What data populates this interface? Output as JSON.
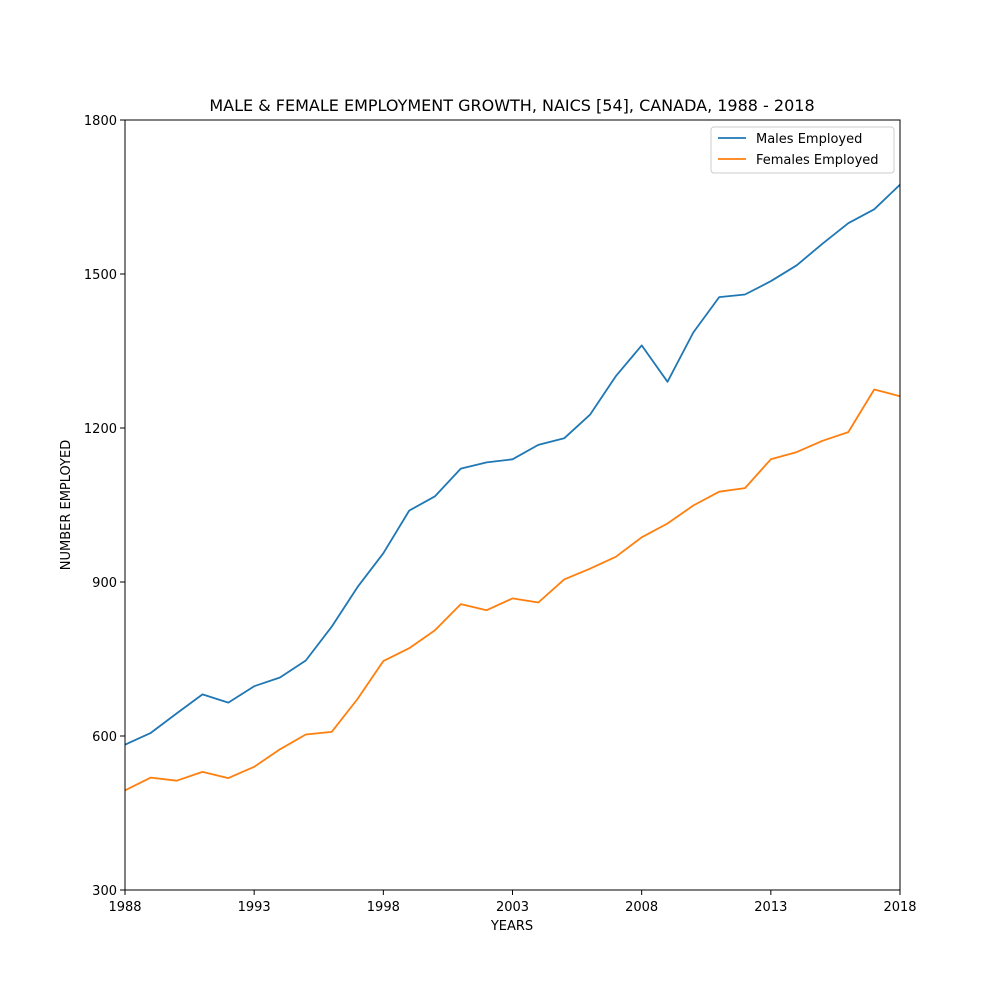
{
  "chart_data": {
    "type": "line",
    "title": "MALE & FEMALE EMPLOYMENT GROWTH, NAICS [54], CANADA, 1988  - 2018",
    "xlabel": "YEARS",
    "ylabel": "NUMBER EMPLOYED",
    "xlim": [
      1988,
      2018
    ],
    "ylim": [
      300,
      1800
    ],
    "xticks": [
      1988,
      1993,
      1998,
      2003,
      2008,
      2013,
      2018
    ],
    "yticks": [
      300,
      600,
      900,
      1200,
      1500,
      1800
    ],
    "grid": false,
    "legend_position": "top-right",
    "x": [
      1988,
      1989,
      1990,
      1991,
      1992,
      1993,
      1994,
      1995,
      1996,
      1997,
      1998,
      1999,
      2000,
      2001,
      2002,
      2003,
      2004,
      2005,
      2006,
      2007,
      2008,
      2009,
      2010,
      2011,
      2012,
      2013,
      2014,
      2015,
      2016,
      2017,
      2018
    ],
    "series": [
      {
        "name": "Males Employed",
        "color": "#1f77b4",
        "values": [
          583,
          606,
          644,
          681,
          665,
          697,
          714,
          747,
          813,
          890,
          956,
          1039,
          1067,
          1121,
          1133,
          1139,
          1167,
          1180,
          1226,
          1301,
          1361,
          1290,
          1386,
          1455,
          1460,
          1486,
          1517,
          1559,
          1599,
          1626,
          1674
        ]
      },
      {
        "name": "Females Employed",
        "color": "#ff7f0e",
        "values": [
          494,
          519,
          513,
          530,
          518,
          540,
          574,
          603,
          608,
          672,
          746,
          771,
          806,
          857,
          845,
          868,
          860,
          905,
          926,
          949,
          987,
          1014,
          1049,
          1076,
          1083,
          1139,
          1153,
          1175,
          1192,
          1275,
          1262
        ]
      }
    ]
  }
}
